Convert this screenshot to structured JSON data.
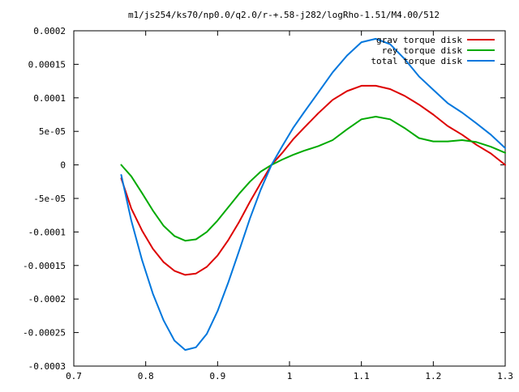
{
  "chart_data": {
    "type": "line",
    "title": "m1/js254/ks70/np0.0/q2.0/r-+.58-j282/logRho-1.51/M4.00/512",
    "xlabel": "",
    "ylabel": "",
    "xlim": [
      0.7,
      1.3
    ],
    "ylim": [
      -0.0003,
      0.0002
    ],
    "grid": false,
    "legend_position": "top-right",
    "x_ticks": [
      {
        "value": 0.7,
        "label": "0.7"
      },
      {
        "value": 0.8,
        "label": "0.8"
      },
      {
        "value": 0.9,
        "label": "0.9"
      },
      {
        "value": 1.0,
        "label": "1"
      },
      {
        "value": 1.1,
        "label": "1.1"
      },
      {
        "value": 1.2,
        "label": "1.2"
      },
      {
        "value": 1.3,
        "label": "1.3"
      }
    ],
    "y_ticks": [
      {
        "value": 0.0002,
        "label": "0.0002"
      },
      {
        "value": 0.00015,
        "label": "0.00015"
      },
      {
        "value": 0.0001,
        "label": "0.0001"
      },
      {
        "value": 5e-05,
        "label": "5e-05"
      },
      {
        "value": 0,
        "label": "0"
      },
      {
        "value": -5e-05,
        "label": "-5e-05"
      },
      {
        "value": -0.0001,
        "label": "-0.0001"
      },
      {
        "value": -0.00015,
        "label": "-0.00015"
      },
      {
        "value": -0.0002,
        "label": "-0.0002"
      },
      {
        "value": -0.00025,
        "label": "-0.00025"
      },
      {
        "value": -0.0003,
        "label": "-0.0003"
      }
    ],
    "series": [
      {
        "name": "grav torque disk",
        "color": "#dd0000",
        "x": [
          0.766,
          0.78,
          0.795,
          0.81,
          0.825,
          0.84,
          0.855,
          0.87,
          0.885,
          0.9,
          0.915,
          0.93,
          0.945,
          0.96,
          0.975,
          0.99,
          1.005,
          1.02,
          1.04,
          1.06,
          1.08,
          1.1,
          1.12,
          1.14,
          1.16,
          1.18,
          1.2,
          1.22,
          1.24,
          1.26,
          1.28,
          1.3
        ],
        "y": [
          -2e-05,
          -6.5e-05,
          -9.8e-05,
          -0.000125,
          -0.000145,
          -0.000158,
          -0.000164,
          -0.000162,
          -0.000152,
          -0.000135,
          -0.000112,
          -8.5e-05,
          -5.5e-05,
          -2.7e-05,
          0.0,
          1.8e-05,
          3.8e-05,
          5.5e-05,
          7.7e-05,
          9.7e-05,
          0.00011,
          0.000118,
          0.000118,
          0.000113,
          0.000103,
          9e-05,
          7.5e-05,
          5.8e-05,
          4.5e-05,
          3e-05,
          1.7e-05,
          0.0
        ]
      },
      {
        "name": "rey torque disk",
        "color": "#00aa00",
        "x": [
          0.766,
          0.78,
          0.795,
          0.81,
          0.825,
          0.84,
          0.855,
          0.87,
          0.885,
          0.9,
          0.915,
          0.93,
          0.945,
          0.96,
          0.975,
          0.99,
          1.005,
          1.02,
          1.04,
          1.06,
          1.08,
          1.1,
          1.12,
          1.14,
          1.16,
          1.18,
          1.2,
          1.22,
          1.24,
          1.26,
          1.28,
          1.3
        ],
        "y": [
          0.0,
          -1.7e-05,
          -4.2e-05,
          -6.8e-05,
          -9.1e-05,
          -0.000106,
          -0.000113,
          -0.000111,
          -0.0001,
          -8.3e-05,
          -6.3e-05,
          -4.3e-05,
          -2.5e-05,
          -1e-05,
          0.0,
          8e-06,
          1.5e-05,
          2.1e-05,
          2.8e-05,
          3.7e-05,
          5.3e-05,
          6.8e-05,
          7.2e-05,
          6.8e-05,
          5.5e-05,
          4e-05,
          3.5e-05,
          3.5e-05,
          3.7e-05,
          3.4e-05,
          2.7e-05,
          1.8e-05
        ]
      },
      {
        "name": "total torque disk",
        "color": "#0077dd",
        "x": [
          0.766,
          0.78,
          0.795,
          0.81,
          0.825,
          0.84,
          0.855,
          0.87,
          0.885,
          0.9,
          0.915,
          0.93,
          0.945,
          0.96,
          0.975,
          0.99,
          1.005,
          1.02,
          1.04,
          1.06,
          1.08,
          1.1,
          1.12,
          1.14,
          1.16,
          1.18,
          1.2,
          1.22,
          1.24,
          1.26,
          1.28,
          1.3
        ],
        "y": [
          -1.5e-05,
          -8.3e-05,
          -0.000142,
          -0.000192,
          -0.000232,
          -0.000262,
          -0.000276,
          -0.000272,
          -0.000252,
          -0.000218,
          -0.000175,
          -0.000128,
          -8e-05,
          -3.7e-05,
          0.0,
          2.8e-05,
          5.5e-05,
          7.8e-05,
          0.000108,
          0.000138,
          0.000163,
          0.000183,
          0.000188,
          0.00018,
          0.000158,
          0.000132,
          0.000112,
          9.2e-05,
          7.8e-05,
          6.2e-05,
          4.5e-05,
          2.5e-05
        ]
      }
    ]
  }
}
